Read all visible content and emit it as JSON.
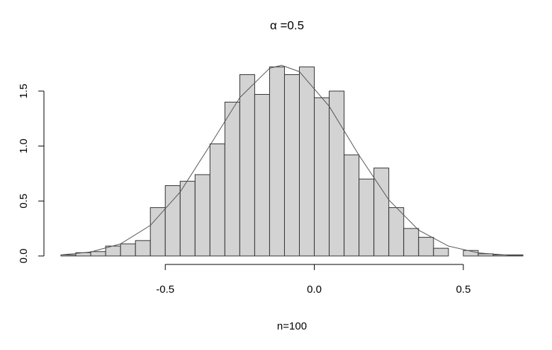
{
  "chart_data": {
    "type": "histogram",
    "title": "α =0.5",
    "x_label": "n=100",
    "bins": [
      -0.85,
      -0.8,
      -0.75,
      -0.7,
      -0.65,
      -0.6,
      -0.55,
      -0.5,
      -0.45,
      -0.4,
      -0.35,
      -0.3,
      -0.25,
      -0.2,
      -0.15,
      -0.1,
      -0.05,
      0,
      0.05,
      0.1,
      0.15,
      0.2,
      0.25,
      0.3,
      0.35,
      0.4,
      0.45,
      0.5,
      0.55,
      0.6,
      0.65,
      0.7
    ],
    "values": [
      0.01,
      0.03,
      0.04,
      0.09,
      0.11,
      0.14,
      0.44,
      0.64,
      0.68,
      0.74,
      1.02,
      1.4,
      1.65,
      1.47,
      1.72,
      1.65,
      1.72,
      1.44,
      1.5,
      0.92,
      0.7,
      0.8,
      0.44,
      0.25,
      0.17,
      0.07,
      0,
      0.05,
      0.02,
      0.01,
      0.01
    ],
    "color": "#d3d3d3",
    "curve": {
      "x": [
        -0.85,
        -0.75,
        -0.65,
        -0.55,
        -0.45,
        -0.35,
        -0.25,
        -0.15,
        -0.11,
        -0.05,
        0.05,
        0.15,
        0.25,
        0.35,
        0.45,
        0.55,
        0.65,
        0.7
      ],
      "values": [
        0.01,
        0.036,
        0.11,
        0.278,
        0.582,
        1.006,
        1.441,
        1.708,
        1.735,
        1.677,
        1.362,
        0.916,
        0.51,
        0.235,
        0.09,
        0.028,
        0.007,
        0.0035
      ],
      "color": "#555555"
    },
    "xlim": [
      -0.85,
      0.7
    ],
    "ylim": [
      0,
      1.75
    ],
    "xticks": [
      -0.5,
      {
        "value": 0,
        "label": "0.0"
      },
      0.5
    ],
    "yticks": [
      {
        "value": 0,
        "label": "0.0"
      },
      0.5,
      {
        "value": 1,
        "label": "1.0"
      },
      1.5
    ]
  }
}
